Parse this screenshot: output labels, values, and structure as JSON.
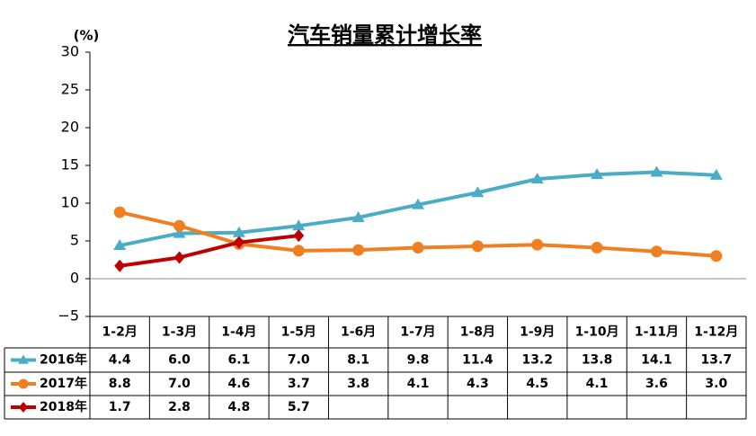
{
  "chart_data": {
    "type": "line",
    "title": "汽车销量累计增长率",
    "y_label": "(%)",
    "categories": [
      "1-2月",
      "1-3月",
      "1-4月",
      "1-5月",
      "1-6月",
      "1-7月",
      "1-8月",
      "1-9月",
      "1-10月",
      "1-11月",
      "1-12月"
    ],
    "series": [
      {
        "name": "2016年",
        "color": "#4bacc6",
        "marker": "triangle",
        "values": [
          4.4,
          6.0,
          6.1,
          7.0,
          8.1,
          9.8,
          11.4,
          13.2,
          13.8,
          14.1,
          13.7
        ],
        "value_labels": [
          "4.4",
          "6.0",
          "6.1",
          "7.0",
          "8.1",
          "9.8",
          "11.4",
          "13.2",
          "13.8",
          "14.1",
          "13.7"
        ]
      },
      {
        "name": "2017年",
        "color": "#f07f22",
        "marker": "circle",
        "values": [
          8.8,
          7.0,
          4.6,
          3.7,
          3.8,
          4.1,
          4.3,
          4.5,
          4.1,
          3.6,
          3.0
        ],
        "value_labels": [
          "8.8",
          "7.0",
          "4.6",
          "3.7",
          "3.8",
          "4.1",
          "4.3",
          "4.5",
          "4.1",
          "3.6",
          "3.0"
        ]
      },
      {
        "name": "2018年",
        "color": "#c00000",
        "marker": "diamond",
        "values": [
          1.7,
          2.8,
          4.8,
          5.7,
          null,
          null,
          null,
          null,
          null,
          null,
          null
        ],
        "value_labels": [
          "1.7",
          "2.8",
          "4.8",
          "5.7",
          null,
          null,
          null,
          null,
          null,
          null,
          null
        ]
      }
    ],
    "ylim": [
      -5,
      30
    ],
    "yticks": [
      {
        "value": -5,
        "label": "−5"
      },
      0,
      5,
      10,
      15,
      20,
      25,
      30
    ],
    "grid": false
  }
}
